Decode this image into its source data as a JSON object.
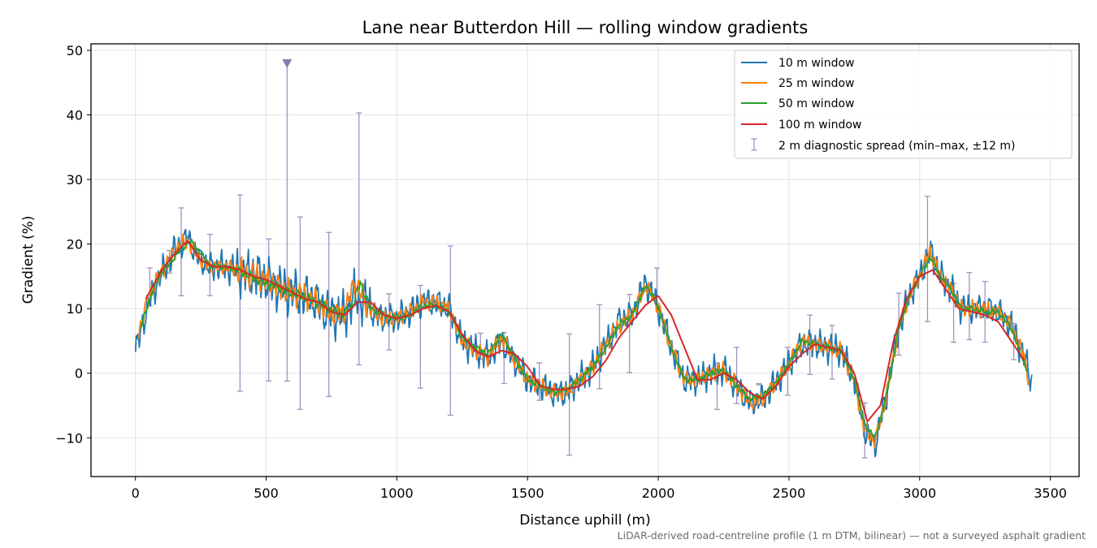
{
  "chart_data": {
    "type": "line",
    "title": "Lane near Butterdon Hill — rolling window gradients",
    "xlabel": "Distance uphill (m)",
    "ylabel": "Gradient (%)",
    "footnote": "LiDAR-derived road-centreline profile (1 m DTM, bilinear) — not a surveyed asphalt gradient",
    "xlim": [
      -170,
      3610
    ],
    "ylim": [
      -16,
      51
    ],
    "xticks": [
      0,
      500,
      1000,
      1500,
      2000,
      2500,
      3000,
      3500
    ],
    "yticks": [
      -10,
      0,
      10,
      20,
      30,
      40,
      50
    ],
    "ytick_labels": [
      "−10",
      "0",
      "10",
      "20",
      "30",
      "40",
      "50"
    ],
    "grid": true,
    "legend_position": "top-right",
    "series": [
      {
        "name": "10 m window",
        "color": "#1f77b4",
        "noise": 2.6,
        "x": [
          0,
          30,
          60,
          100,
          150,
          200,
          240,
          280,
          330,
          380,
          420,
          470,
          520,
          560,
          600,
          640,
          680,
          720,
          760,
          800,
          840,
          880,
          920,
          960,
          1000,
          1050,
          1100,
          1150,
          1200,
          1250,
          1300,
          1350,
          1400,
          1450,
          1500,
          1550,
          1600,
          1650,
          1700,
          1750,
          1800,
          1850,
          1900,
          1950,
          1980,
          2010,
          2050,
          2100,
          2150,
          2200,
          2250,
          2300,
          2350,
          2400,
          2450,
          2500,
          2550,
          2600,
          2650,
          2700,
          2750,
          2790,
          2830,
          2870,
          2920,
          2960,
          3000,
          3040,
          3080,
          3120,
          3160,
          3200,
          3250,
          3300,
          3350,
          3400,
          3430
        ],
        "y": [
          3.3,
          8,
          12,
          15.5,
          19,
          21,
          18,
          16.5,
          16.5,
          16,
          15.5,
          15,
          14,
          13,
          12.5,
          12,
          11.5,
          10,
          9,
          9,
          12,
          11,
          9,
          8.5,
          8.5,
          9.5,
          11,
          11,
          10,
          5,
          3.5,
          2.5,
          5,
          2,
          -1,
          -2,
          -3,
          -3,
          -1,
          1,
          4.5,
          8,
          9,
          14,
          12,
          9,
          4,
          -1,
          -1,
          0,
          0.5,
          -2,
          -4.5,
          -4,
          -1.5,
          1.5,
          4.5,
          4.5,
          4,
          3.5,
          -1,
          -9,
          -11,
          -4,
          7,
          12,
          15,
          19,
          15,
          13,
          10,
          10,
          10,
          9.5,
          7.5,
          2.5,
          -1.5
        ]
      },
      {
        "name": "25 m window",
        "color": "#ff7f0e",
        "noise": 1.4,
        "x": [
          10,
          40,
          80,
          120,
          160,
          200,
          240,
          280,
          330,
          380,
          420,
          470,
          520,
          560,
          600,
          640,
          680,
          720,
          760,
          800,
          840,
          880,
          920,
          960,
          1000,
          1050,
          1100,
          1150,
          1200,
          1250,
          1300,
          1350,
          1400,
          1450,
          1500,
          1550,
          1600,
          1650,
          1700,
          1750,
          1800,
          1850,
          1900,
          1950,
          1980,
          2010,
          2050,
          2100,
          2150,
          2200,
          2250,
          2300,
          2350,
          2400,
          2450,
          2500,
          2550,
          2600,
          2650,
          2700,
          2750,
          2790,
          2830,
          2870,
          2920,
          2960,
          3000,
          3040,
          3080,
          3120,
          3160,
          3200,
          3250,
          3300,
          3350,
          3400,
          3420
        ],
        "y": [
          6,
          10.5,
          14.5,
          17,
          19.5,
          20.5,
          18,
          16.5,
          16.5,
          16.2,
          15.5,
          15,
          14,
          13,
          12.5,
          12,
          11.5,
          10,
          9,
          9.5,
          14,
          11,
          9,
          8.5,
          8.5,
          9.5,
          11,
          11,
          10,
          5,
          3.5,
          2.5,
          5.5,
          2,
          -1,
          -2,
          -3,
          -3,
          -1,
          1,
          4.5,
          7.5,
          9,
          13.5,
          12,
          9,
          4,
          -1,
          -1,
          0,
          0.5,
          -2,
          -4.5,
          -4,
          -1.5,
          1.5,
          5,
          4.5,
          4,
          3.5,
          -1,
          -9,
          -10.5,
          -4,
          7,
          12,
          15,
          19,
          15,
          13,
          10,
          10,
          10,
          9.5,
          7.5,
          2.5,
          -1.5
        ]
      },
      {
        "name": "50 m window",
        "color": "#2ca02c",
        "noise": 0.5,
        "x": [
          20,
          50,
          90,
          130,
          170,
          210,
          250,
          290,
          340,
          390,
          440,
          490,
          540,
          590,
          640,
          690,
          740,
          790,
          830,
          860,
          900,
          950,
          1000,
          1050,
          1100,
          1150,
          1200,
          1250,
          1300,
          1350,
          1400,
          1450,
          1500,
          1550,
          1600,
          1650,
          1700,
          1750,
          1800,
          1850,
          1900,
          1950,
          1980,
          2010,
          2050,
          2100,
          2150,
          2200,
          2250,
          2300,
          2350,
          2400,
          2450,
          2500,
          2550,
          2600,
          2650,
          2700,
          2750,
          2790,
          2830,
          2870,
          2920,
          2960,
          3000,
          3040,
          3080,
          3120,
          3160,
          3200,
          3250,
          3300,
          3350,
          3410
        ],
        "y": [
          7,
          11,
          15,
          17,
          19,
          20.5,
          18.5,
          16.5,
          16.5,
          16,
          15,
          14,
          13.5,
          12.5,
          12,
          11,
          10,
          9,
          10.5,
          14,
          10,
          9,
          8.5,
          9,
          10.5,
          10.5,
          9.5,
          5.5,
          4,
          3,
          6,
          2.5,
          -1,
          -2,
          -3,
          -2.5,
          -1,
          1,
          4,
          7.5,
          9,
          13.5,
          12,
          9,
          4,
          -1,
          -1,
          0,
          0.5,
          -2,
          -4,
          -3.5,
          -1.5,
          1.5,
          5,
          4.5,
          4,
          3.5,
          -1,
          -8,
          -10,
          -4,
          7,
          12,
          15,
          18,
          15,
          13,
          10,
          10,
          9.5,
          9.5,
          7,
          0.5
        ]
      },
      {
        "name": "100 m window",
        "color": "#d62728",
        "noise": 0,
        "x": [
          40,
          100,
          150,
          200,
          250,
          300,
          350,
          400,
          450,
          500,
          550,
          600,
          650,
          700,
          750,
          800,
          850,
          900,
          950,
          1000,
          1050,
          1100,
          1150,
          1200,
          1250,
          1300,
          1350,
          1400,
          1450,
          1500,
          1550,
          1600,
          1650,
          1700,
          1750,
          1800,
          1850,
          1900,
          1950,
          2000,
          2050,
          2100,
          2150,
          2200,
          2250,
          2300,
          2350,
          2400,
          2450,
          2500,
          2550,
          2600,
          2650,
          2700,
          2750,
          2800,
          2850,
          2900,
          2950,
          3000,
          3050,
          3100,
          3150,
          3200,
          3250,
          3300,
          3350,
          3400
        ],
        "y": [
          11.5,
          16,
          18.5,
          20.5,
          17.5,
          16.5,
          16.5,
          16,
          15,
          14.5,
          13.5,
          12.5,
          11.5,
          11,
          9.5,
          9,
          11,
          11,
          9,
          8.5,
          9,
          10,
          10.5,
          9.5,
          6,
          3.5,
          2.5,
          3.5,
          3,
          1,
          -2,
          -2.5,
          -2.5,
          -2,
          -0.5,
          2,
          5.5,
          8,
          10.5,
          12,
          9,
          4,
          -1,
          -1,
          0,
          -1,
          -3,
          -4,
          -2,
          1,
          3,
          4.5,
          4,
          3.5,
          0,
          -7.5,
          -5,
          5,
          11.5,
          15,
          16,
          13,
          10,
          9.5,
          9,
          8,
          5,
          2
        ]
      }
    ],
    "diagnostic": {
      "name": "2 m diagnostic spread (min–max, ±12 m)",
      "color": "#a093bf",
      "x": [
        55,
        130,
        175,
        285,
        400,
        510,
        580,
        630,
        740,
        855,
        970,
        1090,
        1205,
        1320,
        1410,
        1545,
        1660,
        1775,
        1890,
        1995,
        2225,
        2300,
        2385,
        2495,
        2580,
        2665,
        2790,
        2920,
        3030,
        3130,
        3190,
        3250,
        3360
      ],
      "ymin": [
        10.5,
        15.5,
        12,
        12,
        -2.8,
        -1.2,
        -1.2,
        -5.6,
        -3.6,
        1.3,
        3.6,
        -2.3,
        -6.5,
        2.2,
        -1.6,
        -4.2,
        -12.7,
        -2.4,
        0.1,
        10.8,
        -5.6,
        -4.7,
        -1.8,
        -3.4,
        -0.2,
        -0.9,
        -13.1,
        2.8,
        8,
        4.8,
        5.2,
        4.8,
        2.1
      ],
      "ymax": [
        16.3,
        19,
        25.6,
        21.5,
        27.6,
        20.8,
        48,
        24.2,
        21.8,
        40.3,
        12.3,
        13.6,
        19.7,
        6.2,
        6.3,
        1.6,
        6.1,
        10.6,
        12.2,
        16.3,
        1.6,
        4,
        -1.6,
        4,
        9,
        7.4,
        -4.6,
        12.4,
        27.4,
        13.9,
        15.6,
        14.2,
        7.7
      ],
      "clipped_marker": {
        "x": 580,
        "y": 48
      }
    }
  }
}
